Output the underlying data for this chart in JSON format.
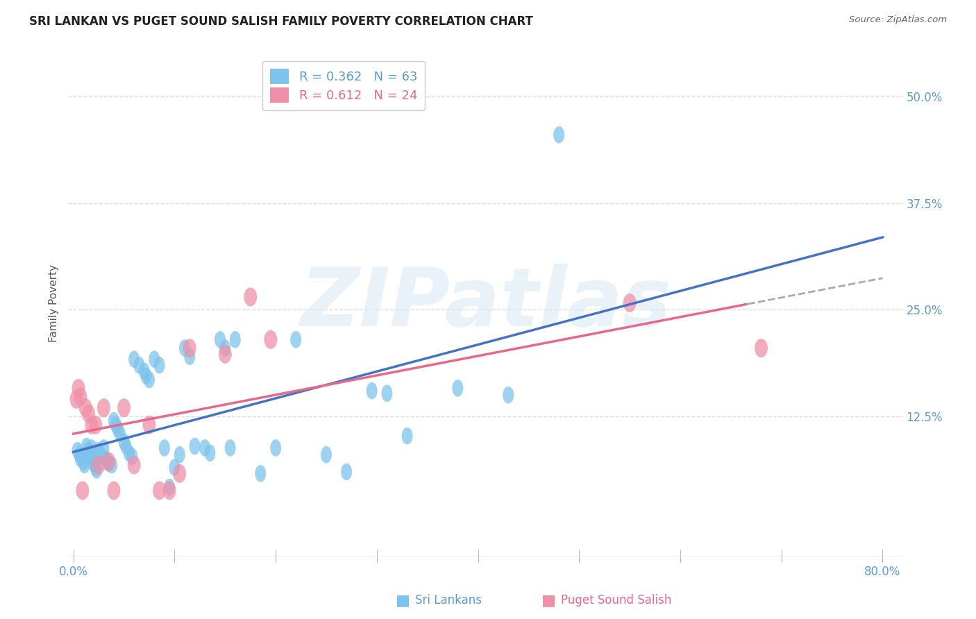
{
  "title": "SRI LANKAN VS PUGET SOUND SALISH FAMILY POVERTY CORRELATION CHART",
  "source": "Source: ZipAtlas.com",
  "ylabel": "Family Poverty",
  "series1_name": "Sri Lankans",
  "series1_color": "#7DC3ED",
  "series1_R": 0.362,
  "series1_N": 63,
  "series2_name": "Puget Sound Salish",
  "series2_color": "#F090A8",
  "series2_R": 0.612,
  "series2_N": 24,
  "xlim": [
    -0.005,
    0.82
  ],
  "ylim": [
    -0.04,
    0.555
  ],
  "ytick_vals": [
    0.0,
    0.125,
    0.25,
    0.375,
    0.5
  ],
  "ytick_labels": [
    "",
    "12.5%",
    "25.0%",
    "37.5%",
    "50.0%"
  ],
  "xtick_vals": [
    0.0,
    0.1,
    0.2,
    0.3,
    0.4,
    0.5,
    0.6,
    0.7,
    0.8
  ],
  "watermark": "ZIPatlas",
  "blue_line_color": "#4472C4",
  "pink_line_color": "#E8688A",
  "dashed_color": "#AAAAAA",
  "grid_color": "#DDDDDD",
  "title_color": "#222222",
  "tick_color": "#5B9BD5",
  "sri_lankans_x": [
    0.004,
    0.006,
    0.007,
    0.009,
    0.01,
    0.011,
    0.013,
    0.015,
    0.016,
    0.016,
    0.018,
    0.019,
    0.02,
    0.021,
    0.022,
    0.023,
    0.025,
    0.027,
    0.028,
    0.03,
    0.032,
    0.033,
    0.035,
    0.038,
    0.04,
    0.042,
    0.044,
    0.046,
    0.05,
    0.052,
    0.055,
    0.058,
    0.06,
    0.065,
    0.07,
    0.072,
    0.075,
    0.08,
    0.085,
    0.09,
    0.095,
    0.1,
    0.105,
    0.11,
    0.115,
    0.12,
    0.13,
    0.135,
    0.145,
    0.15,
    0.155,
    0.16,
    0.185,
    0.2,
    0.22,
    0.25,
    0.27,
    0.295,
    0.31,
    0.33,
    0.38,
    0.43,
    0.48
  ],
  "sri_lankans_y": [
    0.085,
    0.08,
    0.075,
    0.078,
    0.072,
    0.068,
    0.09,
    0.085,
    0.082,
    0.078,
    0.088,
    0.075,
    0.07,
    0.068,
    0.065,
    0.062,
    0.085,
    0.08,
    0.078,
    0.088,
    0.075,
    0.072,
    0.07,
    0.068,
    0.12,
    0.115,
    0.11,
    0.105,
    0.095,
    0.09,
    0.082,
    0.078,
    0.192,
    0.185,
    0.178,
    0.172,
    0.168,
    0.192,
    0.185,
    0.088,
    0.042,
    0.065,
    0.08,
    0.205,
    0.195,
    0.09,
    0.088,
    0.082,
    0.215,
    0.205,
    0.088,
    0.215,
    0.058,
    0.088,
    0.215,
    0.08,
    0.06,
    0.155,
    0.152,
    0.102,
    0.158,
    0.15,
    0.455
  ],
  "puget_x": [
    0.003,
    0.005,
    0.007,
    0.009,
    0.012,
    0.015,
    0.018,
    0.022,
    0.025,
    0.03,
    0.035,
    0.04,
    0.05,
    0.06,
    0.075,
    0.085,
    0.095,
    0.105,
    0.115,
    0.15,
    0.175,
    0.195,
    0.55,
    0.68
  ],
  "puget_y": [
    0.145,
    0.158,
    0.148,
    0.038,
    0.135,
    0.128,
    0.115,
    0.115,
    0.068,
    0.135,
    0.072,
    0.038,
    0.135,
    0.068,
    0.115,
    0.038,
    0.038,
    0.058,
    0.205,
    0.198,
    0.265,
    0.215,
    0.258,
    0.205
  ]
}
